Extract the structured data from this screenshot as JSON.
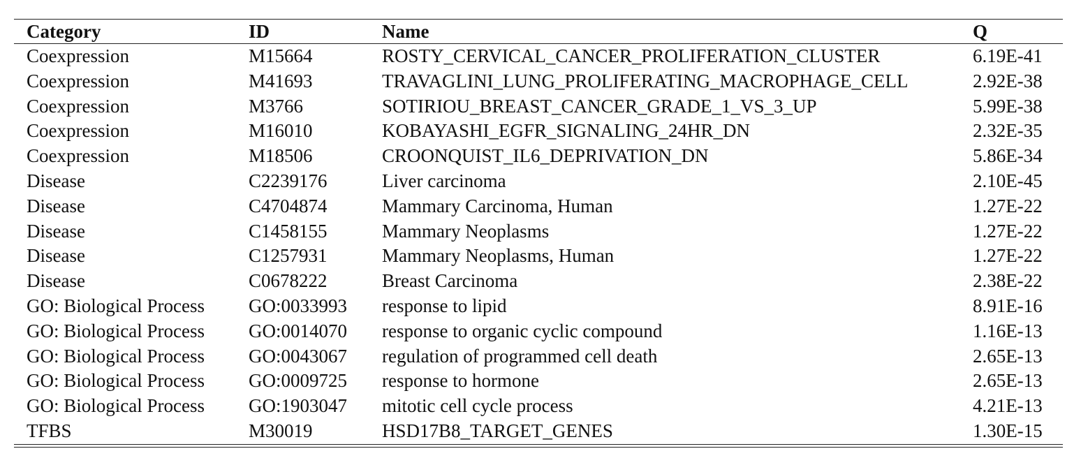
{
  "table": {
    "headers": {
      "category": "Category",
      "id": "ID",
      "name": "Name",
      "q": "Q"
    },
    "rows": [
      {
        "category": "Coexpression",
        "id": "M15664",
        "name": "ROSTY_CERVICAL_CANCER_PROLIFERATION_CLUSTER",
        "q": "6.19E-41"
      },
      {
        "category": "Coexpression",
        "id": "M41693",
        "name": "TRAVAGLINI_LUNG_PROLIFERATING_MACROPHAGE_CELL",
        "q": "2.92E-38"
      },
      {
        "category": "Coexpression",
        "id": "M3766",
        "name": "SOTIRIOU_BREAST_CANCER_GRADE_1_VS_3_UP",
        "q": "5.99E-38"
      },
      {
        "category": "Coexpression",
        "id": "M16010",
        "name": "KOBAYASHI_EGFR_SIGNALING_24HR_DN",
        "q": "2.32E-35"
      },
      {
        "category": "Coexpression",
        "id": "M18506",
        "name": "CROONQUIST_IL6_DEPRIVATION_DN",
        "q": "5.86E-34"
      },
      {
        "category": "Disease",
        "id": "C2239176",
        "name": "Liver carcinoma",
        "q": "2.10E-45"
      },
      {
        "category": "Disease",
        "id": "C4704874",
        "name": "Mammary Carcinoma, Human",
        "q": "1.27E-22"
      },
      {
        "category": "Disease",
        "id": "C1458155",
        "name": "Mammary Neoplasms",
        "q": "1.27E-22"
      },
      {
        "category": "Disease",
        "id": "C1257931",
        "name": "Mammary Neoplasms, Human",
        "q": "1.27E-22"
      },
      {
        "category": "Disease",
        "id": "C0678222",
        "name": "Breast Carcinoma",
        "q": "2.38E-22"
      },
      {
        "category": "GO: Biological Process",
        "id": "GO:0033993",
        "name": "response to lipid",
        "q": "8.91E-16"
      },
      {
        "category": "GO: Biological Process",
        "id": "GO:0014070",
        "name": "response to organic cyclic compound",
        "q": "1.16E-13"
      },
      {
        "category": "GO: Biological Process",
        "id": "GO:0043067",
        "name": "regulation of programmed cell death",
        "q": "2.65E-13"
      },
      {
        "category": "GO: Biological Process",
        "id": "GO:0009725",
        "name": "response to hormone",
        "q": "2.65E-13"
      },
      {
        "category": "GO: Biological Process",
        "id": "GO:1903047",
        "name": "mitotic cell cycle process",
        "q": "4.21E-13"
      },
      {
        "category": "TFBS",
        "id": "M30019",
        "name": "HSD17B8_TARGET_GENES",
        "q": "1.30E-15"
      }
    ]
  }
}
